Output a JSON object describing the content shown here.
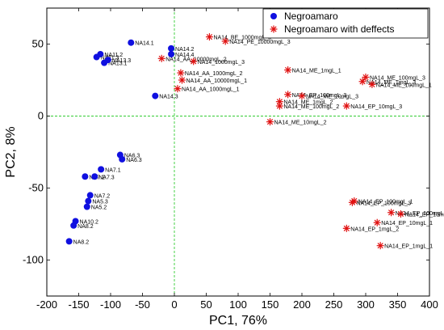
{
  "chart_data": {
    "type": "scatter",
    "xlabel": "PC1, 76%",
    "ylabel": "PC2, 8%",
    "xlim": [
      -200,
      400
    ],
    "ylim": [
      -125,
      75
    ],
    "xticks": [
      -200,
      -150,
      -100,
      -50,
      0,
      50,
      100,
      150,
      200,
      250,
      300,
      350,
      400
    ],
    "yticks": [
      -100,
      -50,
      0,
      50
    ],
    "reference_lines": {
      "x": 0,
      "y": 0,
      "color": "#33cc33",
      "style": "dashed"
    },
    "legend": {
      "position": "top-right",
      "entries": [
        "Negroamaro",
        "Negroamaro with deffects"
      ]
    },
    "series": [
      {
        "name": "Negroamaro",
        "marker": "circle",
        "color": "#1010e0",
        "points": [
          {
            "x": -116,
            "y": 43,
            "label": "NA11.2"
          },
          {
            "x": -122,
            "y": 41,
            "label": "NA11.3"
          },
          {
            "x": -110,
            "y": 37,
            "label": "NA13.1"
          },
          {
            "x": -104,
            "y": 39,
            "label": "NA13.3"
          },
          {
            "x": -68,
            "y": 51,
            "label": "NA14.1"
          },
          {
            "x": -5,
            "y": 47,
            "label": "NA14.2"
          },
          {
            "x": -5,
            "y": 43,
            "label": "NA14.4"
          },
          {
            "x": -30,
            "y": 14,
            "label": "NA14.3"
          },
          {
            "x": -85,
            "y": -27,
            "label": "NA6.3"
          },
          {
            "x": -82,
            "y": -30,
            "label": "NA6.3"
          },
          {
            "x": -115,
            "y": -37,
            "label": "NA7.1"
          },
          {
            "x": -125,
            "y": -42,
            "label": "NA7.3"
          },
          {
            "x": -140,
            "y": -42,
            "label": "NA7.2"
          },
          {
            "x": -132,
            "y": -55,
            "label": "NA7.2"
          },
          {
            "x": -135,
            "y": -59,
            "label": "NA5.3"
          },
          {
            "x": -137,
            "y": -63,
            "label": "NA5.2"
          },
          {
            "x": -155,
            "y": -73,
            "label": "NA10.2"
          },
          {
            "x": -158,
            "y": -76,
            "label": "NA8.2"
          },
          {
            "x": -165,
            "y": -87,
            "label": "NA8.2"
          }
        ]
      },
      {
        "name": "Negroamaro with deffects",
        "marker": "asterisk",
        "color": "#e01010",
        "points": [
          {
            "x": 55,
            "y": 55,
            "label": "NA14_BE_1000mgL_3"
          },
          {
            "x": 80,
            "y": 52,
            "label": "NA14_PE_10000mgL_3"
          },
          {
            "x": -20,
            "y": 40,
            "label": "NA14_AA_10000mgL_2"
          },
          {
            "x": 30,
            "y": 38,
            "label": "NA14_1000mgL_3"
          },
          {
            "x": 10,
            "y": 30,
            "label": "NA14_AA_1000mgL_2"
          },
          {
            "x": 12,
            "y": 25,
            "label": "NA14_AA_10000mgL_1"
          },
          {
            "x": 5,
            "y": 19,
            "label": "NA14_AA_1000mgL_1"
          },
          {
            "x": 178,
            "y": 32,
            "label": "NA14_ME_1mgL_1"
          },
          {
            "x": 300,
            "y": 27,
            "label": "NA14_ME_100mgL_3"
          },
          {
            "x": 295,
            "y": 24,
            "label": "NA14_ME_1mgL_3"
          },
          {
            "x": 310,
            "y": 22,
            "label": "NA14_ME_100mgL_1"
          },
          {
            "x": 178,
            "y": 15,
            "label": "NA14_EP_100mgL_3"
          },
          {
            "x": 200,
            "y": 14,
            "label": "NA14_ME_10mgL_3"
          },
          {
            "x": 165,
            "y": 10,
            "label": "NA14_ME_1mgL_2"
          },
          {
            "x": 165,
            "y": 7,
            "label": "NA14_ME_100mgL_2"
          },
          {
            "x": 270,
            "y": 7,
            "label": "NA14_EP_10mgL_3"
          },
          {
            "x": 150,
            "y": -4,
            "label": "NA14_ME_10mgL_2"
          },
          {
            "x": 282,
            "y": -59,
            "label": "NA14_EP_100mgL_1"
          },
          {
            "x": 279,
            "y": -60,
            "label": "NA14_EP_100mgL_3"
          },
          {
            "x": 340,
            "y": -67,
            "label": "NA14_EP_100mgL"
          },
          {
            "x": 355,
            "y": -68,
            "label": "NA14_EP_10mgL_2"
          },
          {
            "x": 318,
            "y": -74,
            "label": "NA14_EP_10mgL_1"
          },
          {
            "x": 270,
            "y": -78,
            "label": "NA14_EP_1mgL_2"
          },
          {
            "x": 323,
            "y": -90,
            "label": "NA14_EP_1mgL_1"
          }
        ]
      }
    ]
  }
}
